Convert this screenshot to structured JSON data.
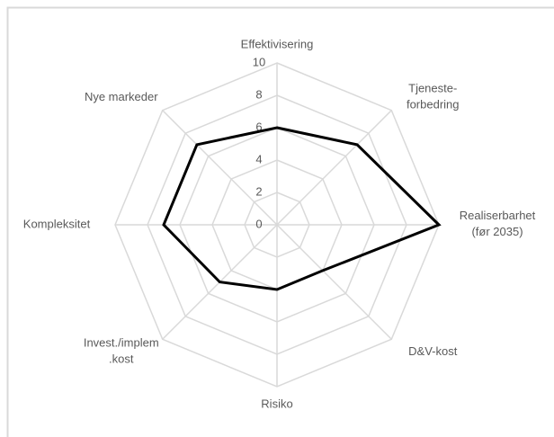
{
  "chart_data": {
    "type": "radar",
    "categories": [
      "Effektivisering",
      "Tjeneste-\nforbedring",
      "Realiserbarhet\n(før 2035)",
      "D&V-kost",
      "Risiko",
      "Invest./implem\n.kost",
      "Kompleksitet",
      "Nye markeder"
    ],
    "values": [
      6,
      7,
      10,
      4,
      4,
      5,
      7,
      7
    ],
    "color": "#000000",
    "ylim": [
      0,
      10
    ],
    "yticks": [
      0,
      2,
      4,
      6,
      8,
      10
    ],
    "grid": true
  }
}
